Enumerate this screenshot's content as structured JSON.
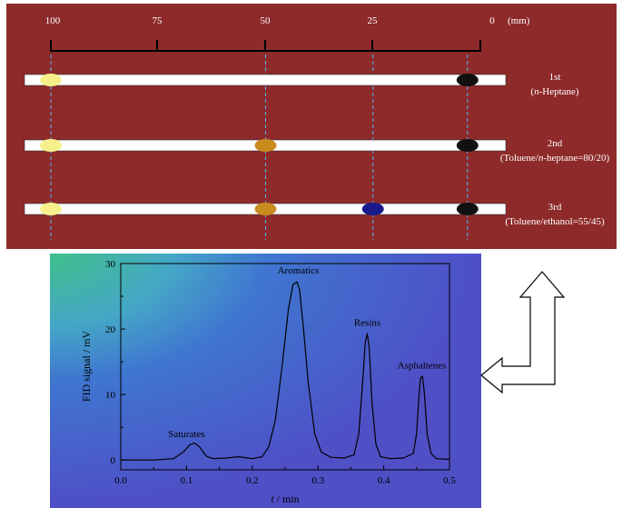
{
  "scale": {
    "ticks": [
      "100",
      "75",
      "50",
      "25",
      "0"
    ],
    "unit": "(mm)"
  },
  "rods": [
    {
      "label": "1st",
      "solvent_prefix": "(",
      "solvent_italic": "n",
      "solvent_suffix": "-Heptane)",
      "bands": [
        {
          "position_mm": 100,
          "color": "#f7f08a"
        },
        {
          "position_mm": 3,
          "color": "#111111"
        }
      ]
    },
    {
      "label": "2nd",
      "solvent_prefix": "(Toluene/",
      "solvent_italic": "n",
      "solvent_suffix": "-heptane=80/20)",
      "bands": [
        {
          "position_mm": 100,
          "color": "#f7f08a"
        },
        {
          "position_mm": 50,
          "color": "#c98a1e"
        },
        {
          "position_mm": 3,
          "color": "#111111"
        }
      ]
    },
    {
      "label": "3rd",
      "solvent_prefix": "(Toluene/ethanol=55/45)",
      "solvent_italic": "",
      "solvent_suffix": "",
      "bands": [
        {
          "position_mm": 100,
          "color": "#f7f08a"
        },
        {
          "position_mm": 50,
          "color": "#c98a1e"
        },
        {
          "position_mm": 25,
          "color": "#1a1a8c"
        },
        {
          "position_mm": 3,
          "color": "#111111"
        }
      ]
    }
  ],
  "colors": {
    "panel_background": "#8e2a2a",
    "rod_fill": "#ffffff",
    "dashed_guide": "#4db8ff"
  },
  "chart_data": {
    "type": "line",
    "xlabel_italic": "t",
    "xlabel_rest": " / min",
    "ylabel": "FID signal / mV",
    "xlim": [
      0.0,
      0.5
    ],
    "ylim": [
      -1.5,
      30
    ],
    "xticks": [
      "0.0",
      "0.1",
      "0.2",
      "0.3",
      "0.4",
      "0.5"
    ],
    "yticks": [
      "0",
      "10",
      "20",
      "30"
    ],
    "series": [
      {
        "x": [
          0.0,
          0.05,
          0.08,
          0.095,
          0.105,
          0.112,
          0.12,
          0.13,
          0.14,
          0.16,
          0.18,
          0.2,
          0.215,
          0.225,
          0.235,
          0.245,
          0.255,
          0.262,
          0.268,
          0.272,
          0.278,
          0.285,
          0.295,
          0.305,
          0.32,
          0.34,
          0.355,
          0.362,
          0.368,
          0.372,
          0.375,
          0.378,
          0.382,
          0.388,
          0.395,
          0.41,
          0.43,
          0.445,
          0.45,
          0.453,
          0.456,
          0.459,
          0.462,
          0.466,
          0.472,
          0.48,
          0.5
        ],
        "y": [
          0.0,
          0.0,
          0.2,
          1.2,
          2.3,
          2.6,
          2.0,
          0.6,
          0.2,
          0.3,
          0.5,
          0.2,
          0.5,
          2.0,
          6.0,
          14.0,
          23.0,
          26.8,
          27.2,
          26.0,
          20.0,
          12.0,
          4.0,
          1.2,
          0.4,
          0.3,
          0.8,
          4.0,
          12.0,
          18.0,
          19.3,
          17.0,
          9.0,
          2.5,
          0.5,
          0.2,
          0.3,
          1.0,
          4.0,
          9.0,
          12.5,
          12.8,
          10.0,
          4.0,
          1.0,
          0.2,
          0.1
        ]
      }
    ],
    "annotations": [
      {
        "text": "Saturates",
        "x": 0.1,
        "y": 3.5
      },
      {
        "text": "Aromatics",
        "x": 0.27,
        "y": 28.5
      },
      {
        "text": "Resins",
        "x": 0.375,
        "y": 20.5
      },
      {
        "text": "Asphaltenes",
        "x": 0.458,
        "y": 14.0
      }
    ],
    "grid": false
  }
}
